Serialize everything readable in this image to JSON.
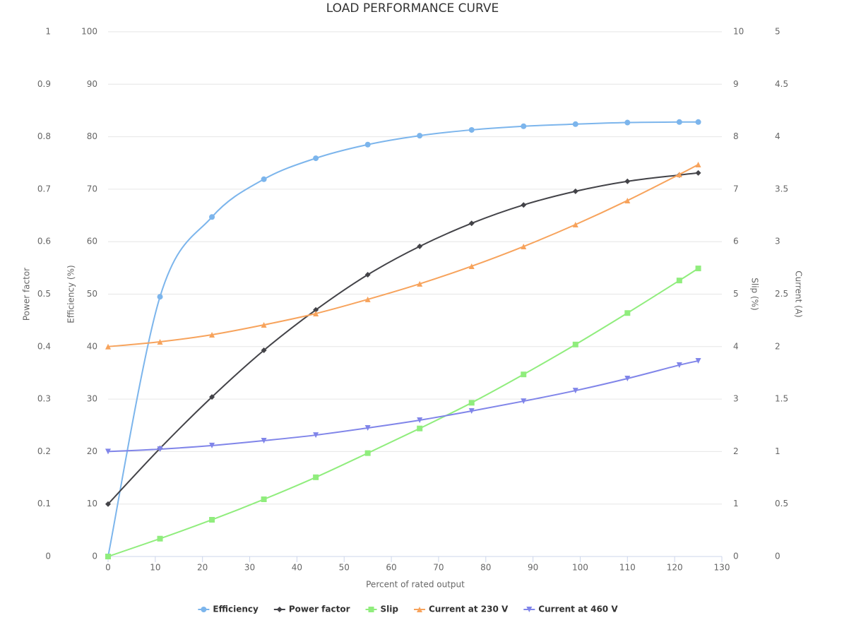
{
  "chart_data": {
    "type": "line",
    "title": "LOAD PERFORMANCE CURVE",
    "x_label": "Percent of rated output",
    "x": [
      0,
      11,
      22,
      33,
      44,
      55,
      66,
      77,
      88,
      99,
      110,
      121,
      125
    ],
    "xlim": [
      0,
      130
    ],
    "xticks": [
      0,
      10,
      20,
      30,
      40,
      50,
      60,
      70,
      80,
      90,
      100,
      110,
      120,
      130
    ],
    "grid": true,
    "axes": [
      {
        "title": "Power factor",
        "lim": [
          0,
          1
        ],
        "ticks": [
          0,
          0.1,
          0.2,
          0.3,
          0.4,
          0.5,
          0.6,
          0.7,
          0.8,
          0.9,
          1
        ]
      },
      {
        "title": "Efficiency (%)",
        "lim": [
          0,
          100
        ],
        "ticks": [
          0,
          10,
          20,
          30,
          40,
          50,
          60,
          70,
          80,
          90,
          100
        ]
      },
      {
        "title": "Slip (%)",
        "lim": [
          0,
          10
        ],
        "ticks": [
          0,
          1,
          2,
          3,
          4,
          5,
          6,
          7,
          8,
          9,
          10
        ]
      },
      {
        "title": "Current (A)",
        "lim": [
          0,
          5
        ],
        "ticks": [
          0,
          0.5,
          1,
          1.5,
          2,
          2.5,
          3,
          3.5,
          4,
          4.5,
          5
        ]
      }
    ],
    "series": [
      {
        "name": "Efficiency",
        "color": "#7cb5ec",
        "marker": "circle",
        "axis": 1,
        "values": [
          0,
          49.5,
          64.7,
          71.9,
          75.9,
          78.5,
          80.2,
          81.3,
          82.0,
          82.4,
          82.7,
          82.8,
          82.8
        ]
      },
      {
        "name": "Power factor",
        "color": "#434348",
        "marker": "diamond",
        "axis": 0,
        "values": [
          0.1,
          0.206,
          0.304,
          0.393,
          0.47,
          0.537,
          0.591,
          0.635,
          0.67,
          0.696,
          0.715,
          0.727,
          0.731
        ]
      },
      {
        "name": "Slip",
        "color": "#90ed7d",
        "marker": "square",
        "axis": 2,
        "values": [
          0,
          0.34,
          0.7,
          1.09,
          1.51,
          1.97,
          2.44,
          2.93,
          3.47,
          4.04,
          4.64,
          5.26,
          5.49
        ]
      },
      {
        "name": "Current at 230 V",
        "color": "#f7a35c",
        "marker": "triangle",
        "axis": 3,
        "values": [
          2.0,
          2.046,
          2.113,
          2.207,
          2.315,
          2.45,
          2.598,
          2.766,
          2.954,
          3.163,
          3.392,
          3.641,
          3.735
        ]
      },
      {
        "name": "Current at 460 V",
        "color": "#8085e9",
        "marker": "triangle-down",
        "axis": 3,
        "values": [
          1.0,
          1.023,
          1.057,
          1.104,
          1.157,
          1.225,
          1.299,
          1.386,
          1.48,
          1.581,
          1.696,
          1.824,
          1.864
        ]
      }
    ]
  }
}
